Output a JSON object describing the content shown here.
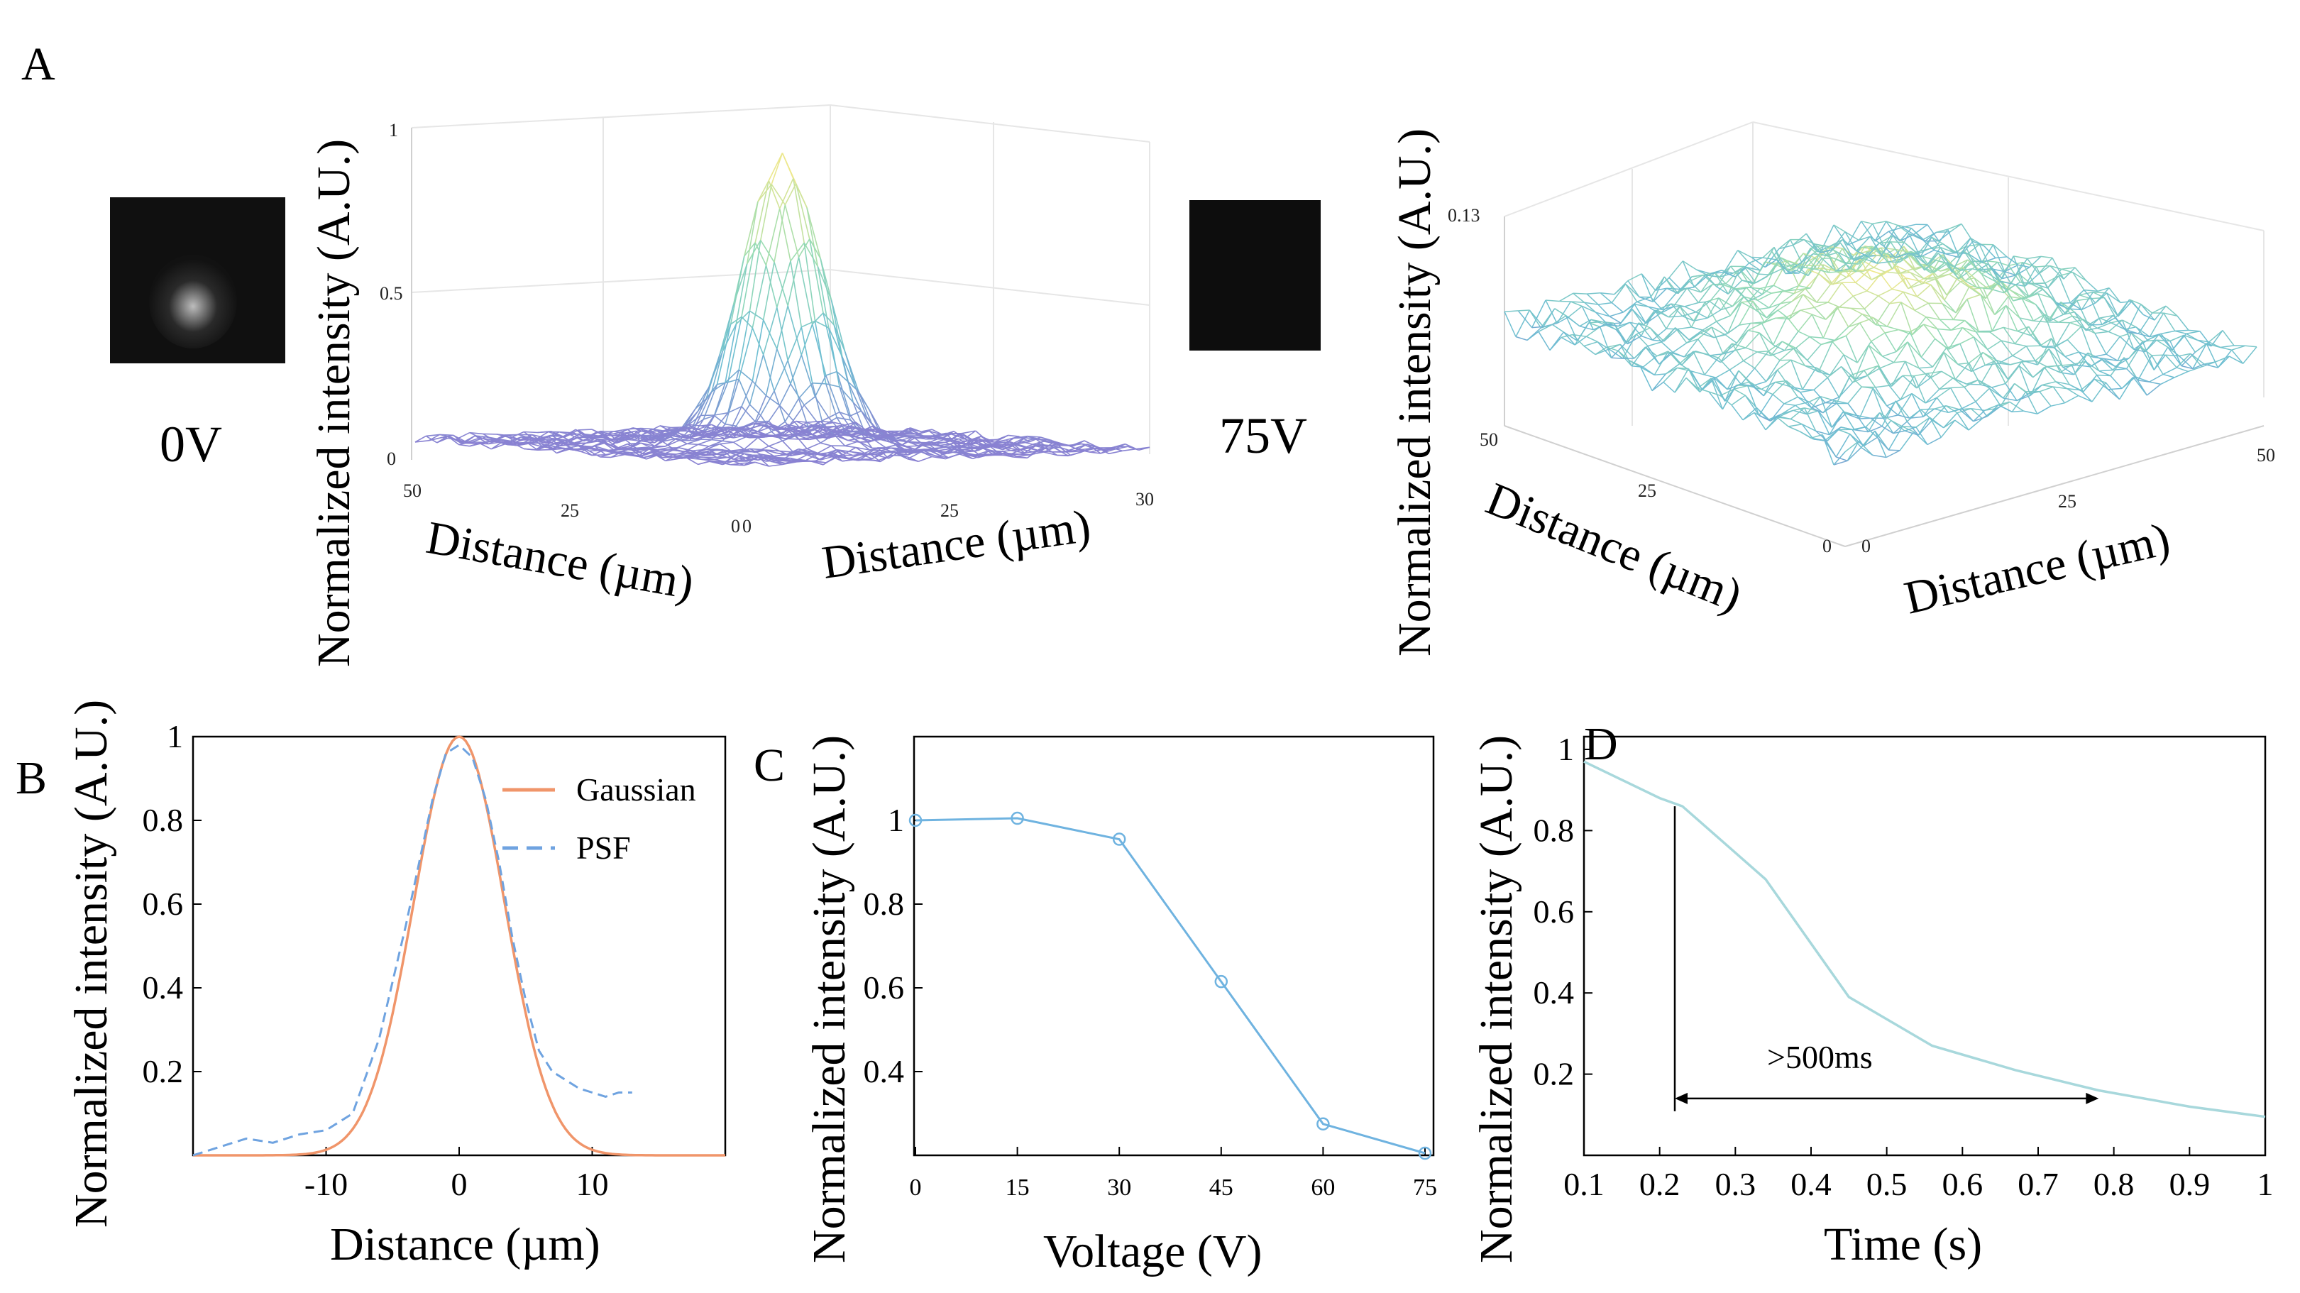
{
  "panel_letters": {
    "A": "A",
    "B": "B",
    "C": "C",
    "D": "D"
  },
  "insets": {
    "left_label": "0V",
    "right_label": "75V"
  },
  "chart_data": [
    {
      "id": "A-left",
      "type": "surface",
      "zlabel": "Normalized intensity (A.U.)",
      "xlabel": "Distance (µm)",
      "ylabel": "Distance (µm)",
      "zticks": [
        "1",
        "0.5",
        "0"
      ],
      "xticks": [
        "50",
        "25",
        "0"
      ],
      "yticks": [
        "0",
        "25",
        "30"
      ],
      "zlim": [
        0,
        1
      ],
      "peak": 0.84,
      "peak_width_um": 5
    },
    {
      "id": "A-right",
      "type": "surface",
      "zlabel": "Normalized intensity (A.U.)",
      "xlabel": "Distance (µm)",
      "ylabel": "Distance (µm)",
      "zticks": [
        "0.13"
      ],
      "xticks": [
        "50",
        "25",
        "0"
      ],
      "yticks": [
        "0",
        "25",
        "50"
      ],
      "zlim": [
        0,
        0.13
      ],
      "peak": 0.1
    },
    {
      "id": "B",
      "type": "line",
      "xlabel": "Distance (µm)",
      "ylabel": "Normalized intensity (A.U.)",
      "xlim": [
        -20,
        20
      ],
      "ylim": [
        0,
        1
      ],
      "xticks": [
        "-10",
        "0",
        "10"
      ],
      "yticks": [
        "0.2",
        "0.4",
        "0.6",
        "0.8",
        "1"
      ],
      "series": [
        {
          "name": "Gaussian",
          "color": "#f0956a",
          "sigma": 3.4,
          "x": [],
          "y": []
        },
        {
          "name": "PSF",
          "color": "#6fa3e0",
          "dashed": true,
          "x": [
            -20,
            -18,
            -16,
            -14,
            -12,
            -10,
            -8,
            -6,
            -4,
            -2,
            -1,
            0,
            1,
            2,
            3,
            4,
            5,
            6,
            7,
            8,
            9,
            10,
            11,
            12,
            13
          ],
          "y": [
            0,
            0.02,
            0.04,
            0.03,
            0.05,
            0.06,
            0.1,
            0.28,
            0.55,
            0.85,
            0.96,
            0.98,
            0.95,
            0.85,
            0.7,
            0.52,
            0.37,
            0.25,
            0.2,
            0.18,
            0.16,
            0.15,
            0.14,
            0.15,
            0.15
          ]
        }
      ]
    },
    {
      "id": "C",
      "type": "line",
      "xlabel": "Voltage (V)",
      "ylabel": "Normalized intensity (A.U.)",
      "categories": [
        "0",
        "15",
        "30",
        "45",
        "60",
        "75"
      ],
      "x": [
        0,
        15,
        30,
        45,
        60,
        75
      ],
      "y": [
        1.0,
        1.005,
        0.955,
        0.615,
        0.275,
        0.205
      ],
      "ylim": [
        0.2,
        1.2
      ],
      "yticks": [
        "0.4",
        "0.6",
        "0.8",
        "1"
      ],
      "color": "#6fb3e0"
    },
    {
      "id": "D",
      "type": "line",
      "xlabel": "Time (s)",
      "ylabel": "Normalized intensity (A.U.)",
      "xlim": [
        0.1,
        1
      ],
      "ylim": [
        0,
        1
      ],
      "xticks": [
        "0.1",
        "0.2",
        "0.3",
        "0.4",
        "0.5",
        "0.6",
        "0.7",
        "0.8",
        "0.9",
        "1"
      ],
      "yticks": [
        "0.2",
        "0.4",
        "0.6",
        "0.8",
        "1"
      ],
      "x": [
        0.1,
        0.2,
        0.23,
        0.34,
        0.45,
        0.56,
        0.67,
        0.78,
        0.9,
        1.0
      ],
      "y": [
        0.97,
        0.88,
        0.86,
        0.68,
        0.39,
        0.27,
        0.21,
        0.16,
        0.12,
        0.095
      ],
      "color": "#a8d8dc",
      "annotation": "&gt;500ms",
      "annotation_text": ">500ms",
      "arrow_x": [
        0.22,
        0.78
      ],
      "arrow_y": 0.14
    }
  ]
}
